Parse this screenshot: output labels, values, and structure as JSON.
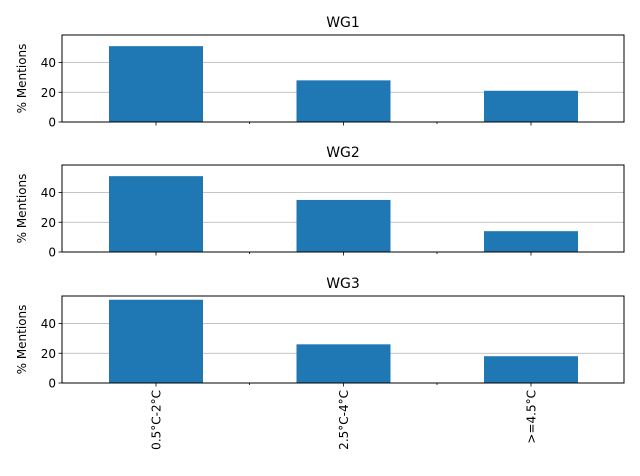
{
  "chart_data": [
    {
      "type": "bar",
      "title": "WG1",
      "ylabel": "% Mentions",
      "categories": [
        "0.5°C-2°C",
        "2.5°C-4°C",
        ">=4.5°C"
      ],
      "values": [
        51,
        28,
        21
      ],
      "yticks": [
        0,
        20,
        40
      ],
      "ylim": [
        0,
        58.5
      ],
      "grid": "y",
      "bar_color": "#1f77b4",
      "show_xtick_labels": false
    },
    {
      "type": "bar",
      "title": "WG2",
      "ylabel": "% Mentions",
      "categories": [
        "0.5°C-2°C",
        "2.5°C-4°C",
        ">=4.5°C"
      ],
      "values": [
        51,
        35,
        14
      ],
      "yticks": [
        0,
        20,
        40
      ],
      "ylim": [
        0,
        58.5
      ],
      "grid": "y",
      "bar_color": "#1f77b4",
      "show_xtick_labels": false
    },
    {
      "type": "bar",
      "title": "WG3",
      "ylabel": "% Mentions",
      "categories": [
        "0.5°C-2°C",
        "2.5°C-4°C",
        ">=4.5°C"
      ],
      "values": [
        56,
        26,
        18
      ],
      "yticks": [
        0,
        20,
        40
      ],
      "ylim": [
        0,
        58.5
      ],
      "grid": "y",
      "bar_color": "#1f77b4",
      "show_xtick_labels": true
    }
  ]
}
